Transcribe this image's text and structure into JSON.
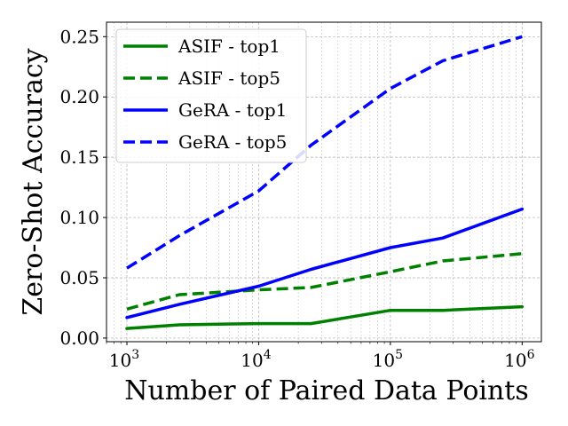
{
  "chart_data": {
    "type": "line",
    "title": "",
    "xlabel": "Number of Paired Data Points",
    "ylabel": "Zero-Shot Accuracy",
    "xscale": "log",
    "xlim": [
      700,
      1400000
    ],
    "ylim": [
      -0.003,
      0.262
    ],
    "grid": true,
    "legend_position": "top-left",
    "x": [
      1000,
      2500,
      10000,
      25000,
      100000,
      250000,
      1000000
    ],
    "x_ticks": [
      {
        "value": 1000,
        "base": "10",
        "exp": "3"
      },
      {
        "value": 10000,
        "base": "10",
        "exp": "4"
      },
      {
        "value": 100000,
        "base": "10",
        "exp": "5"
      },
      {
        "value": 1000000,
        "base": "10",
        "exp": "6"
      }
    ],
    "y_ticks": [
      {
        "value": 0.0,
        "label": "0.00"
      },
      {
        "value": 0.05,
        "label": "0.05"
      },
      {
        "value": 0.1,
        "label": "0.10"
      },
      {
        "value": 0.15,
        "label": "0.15"
      },
      {
        "value": 0.2,
        "label": "0.20"
      },
      {
        "value": 0.25,
        "label": "0.25"
      }
    ],
    "series": [
      {
        "name": "ASIF - top1",
        "color": "#008000",
        "dash": "solid",
        "values": [
          0.008,
          0.011,
          0.012,
          0.012,
          0.023,
          0.023,
          0.026
        ]
      },
      {
        "name": "ASIF - top5",
        "color": "#008000",
        "dash": "dashed",
        "values": [
          0.024,
          0.036,
          0.04,
          0.042,
          0.055,
          0.064,
          0.07
        ]
      },
      {
        "name": "GeRA - top1",
        "color": "#0000ff",
        "dash": "solid",
        "values": [
          0.017,
          0.028,
          0.043,
          0.057,
          0.075,
          0.083,
          0.107
        ]
      },
      {
        "name": "GeRA - top5",
        "color": "#0000ff",
        "dash": "dashed",
        "values": [
          0.058,
          0.085,
          0.122,
          0.16,
          0.207,
          0.23,
          0.25
        ]
      }
    ]
  }
}
